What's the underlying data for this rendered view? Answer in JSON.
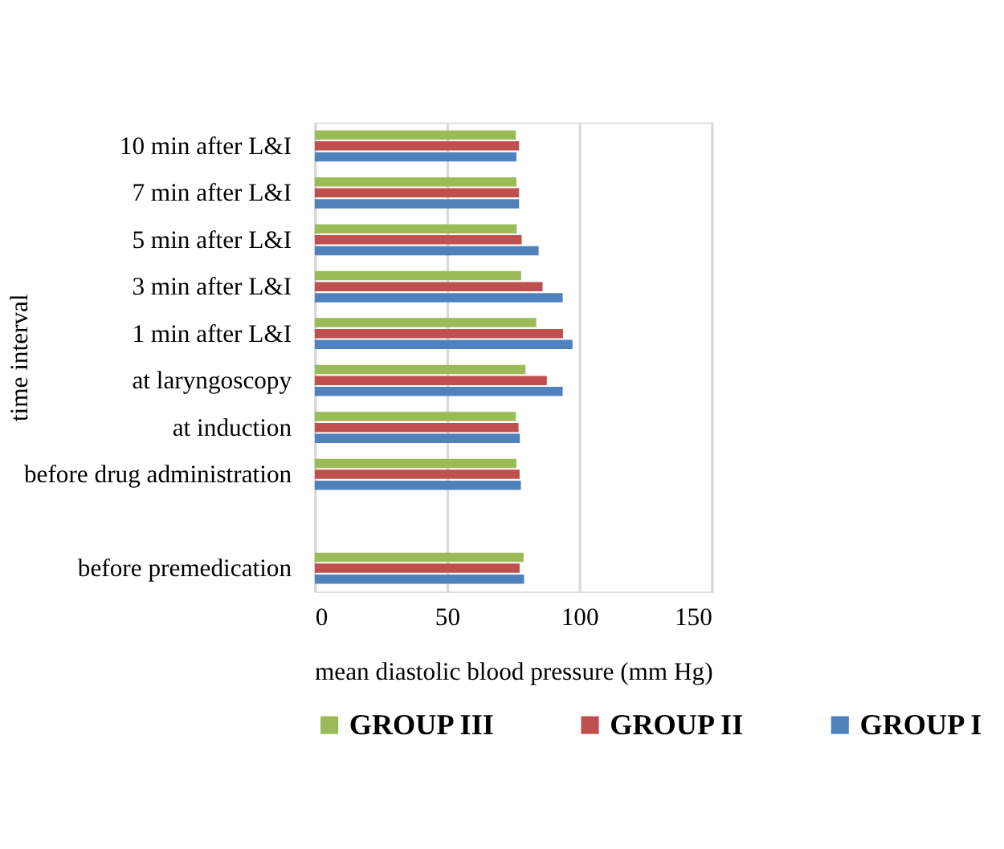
{
  "chart_data": {
    "type": "bar",
    "orientation": "horizontal",
    "xlabel": "mean diastolic blood pressure (mm Hg)",
    "ylabel": "time interval",
    "categories": [
      "10 min after L&I",
      "7 min after L&I",
      "5 min after L&I",
      "3 min after L&I",
      "1 min after L&I",
      "at laryngoscopy",
      "at induction",
      "before drug administration",
      null,
      "before premedication"
    ],
    "series": [
      {
        "name": "GROUP III",
        "color": "#9bbb59",
        "values": [
          76.0,
          76.2,
          76.3,
          78.0,
          83.7,
          79.6,
          76.0,
          76.2,
          null,
          78.9
        ]
      },
      {
        "name": "GROUP II",
        "color": "#c0504d",
        "values": [
          77.2,
          77.2,
          78.2,
          86.1,
          93.8,
          87.7,
          77.0,
          77.4,
          null,
          77.4
        ]
      },
      {
        "name": "GROUP I",
        "color": "#4f81bd",
        "values": [
          76.2,
          77.2,
          84.6,
          93.7,
          97.4,
          93.7,
          77.5,
          77.9,
          null,
          79.1
        ]
      }
    ],
    "xlim": [
      0,
      150
    ],
    "xticks": [
      0,
      50,
      100,
      150
    ],
    "grid": "x",
    "legend": "bottom"
  }
}
